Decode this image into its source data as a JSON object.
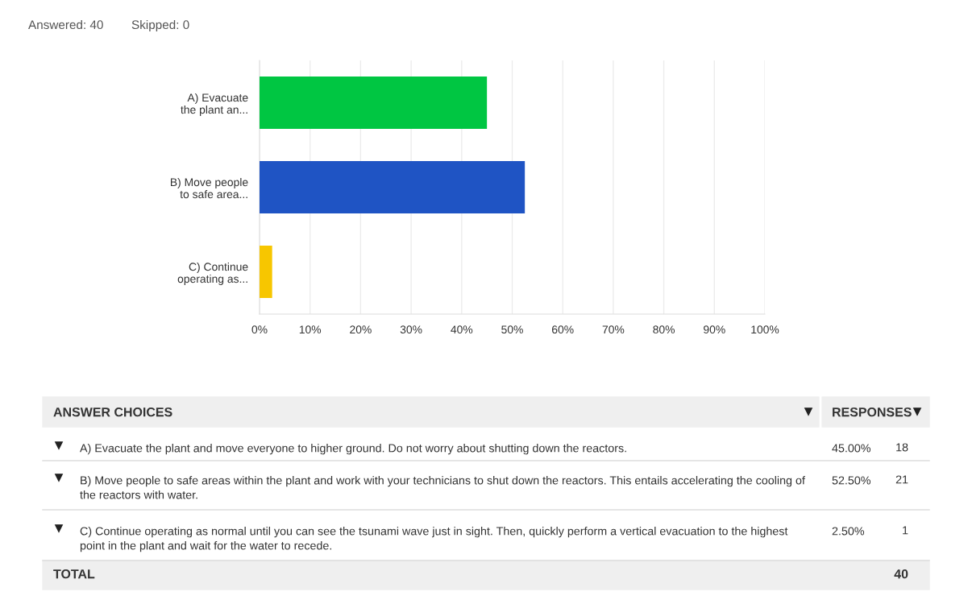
{
  "chart_data": {
    "type": "bar",
    "orientation": "horizontal",
    "categories": [
      "A) Evacuate\nthe plant an...",
      "B) Move people\nto safe area...",
      "C) Continue\noperating as..."
    ],
    "values": [
      45,
      52.5,
      2.5
    ],
    "colors": [
      "#00c642",
      "#1f54c4",
      "#f7c600"
    ],
    "xlim": [
      0,
      100
    ],
    "xticks": [
      {
        "value": 0,
        "label": "0%"
      },
      {
        "value": 10,
        "label": "10%"
      },
      {
        "value": 20,
        "label": "20%"
      },
      {
        "value": 30,
        "label": "30%"
      },
      {
        "value": 40,
        "label": "40%"
      },
      {
        "value": 50,
        "label": "50%"
      },
      {
        "value": 60,
        "label": "60%"
      },
      {
        "value": 70,
        "label": "70%"
      },
      {
        "value": 80,
        "label": "80%"
      },
      {
        "value": 90,
        "label": "90%"
      },
      {
        "value": 100,
        "label": "100%"
      }
    ],
    "grid": "x",
    "annotations": [
      "Answered: 40",
      "Skipped: 0",
      "ANSWER CHOICES",
      "RESPONSES",
      "A) Evacuate the plant and move everyone to higher ground. Do not worry about shutting down the reactors.",
      "B) Move people to safe areas within the plant and work with your technicians to shut down the reactors. This entails accelerating the cooling of the reactors with water.",
      "C) Continue operating as normal until you can see the tsunami wave just in sight. Then, quickly perform a vertical evacuation to the highest point in the plant and wait for the water to recede.",
      "18",
      "21",
      "1",
      "TOTAL",
      "40",
      "45.00%",
      "52.50%",
      "2.50%"
    ]
  }
}
